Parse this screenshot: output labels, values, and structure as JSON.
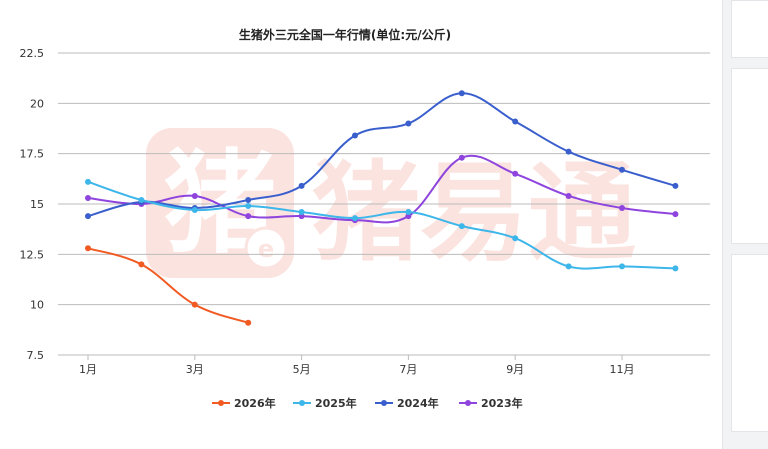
{
  "chart_data": {
    "type": "line",
    "title": "生猪外三元全国一年行情(单位:元/公斤)",
    "x": [
      1,
      2,
      3,
      4,
      5,
      6,
      7,
      8,
      9,
      10,
      11,
      12
    ],
    "x_tick_labels": [
      "1月",
      "3月",
      "5月",
      "7月",
      "9月",
      "11月"
    ],
    "x_tick_values": [
      1,
      3,
      5,
      7,
      9,
      11
    ],
    "ylim": [
      7.5,
      22.5
    ],
    "y_ticks": [
      7.5,
      10,
      12.5,
      15,
      17.5,
      20,
      22.5
    ],
    "y_tick_labels": [
      "7.5",
      "10",
      "12.5",
      "15",
      "17.5",
      "20",
      "22.5"
    ],
    "grid": true,
    "legend_position": "bottom",
    "series": [
      {
        "name": "2026年",
        "color": "#f15a22",
        "values": [
          12.8,
          12.0,
          10.0,
          9.1,
          null,
          null,
          null,
          null,
          null,
          null,
          null,
          null
        ]
      },
      {
        "name": "2025年",
        "color": "#3db6ea",
        "values": [
          16.1,
          15.2,
          14.7,
          14.9,
          14.6,
          14.3,
          14.6,
          13.9,
          13.3,
          11.9,
          11.9,
          11.8
        ]
      },
      {
        "name": "2024年",
        "color": "#3a5fcd",
        "values": [
          14.4,
          15.1,
          14.8,
          15.2,
          15.9,
          18.4,
          19.0,
          20.5,
          19.1,
          17.6,
          16.7,
          15.9
        ]
      },
      {
        "name": "2023年",
        "color": "#8e44dd",
        "values": [
          15.3,
          15.0,
          15.4,
          14.4,
          14.4,
          14.2,
          14.4,
          17.3,
          16.5,
          15.4,
          14.8,
          14.5
        ]
      }
    ]
  },
  "watermark": {
    "logo_glyph": "猪",
    "badge_glyph": "e",
    "text": "猪易通",
    "color": "#e8553f"
  }
}
